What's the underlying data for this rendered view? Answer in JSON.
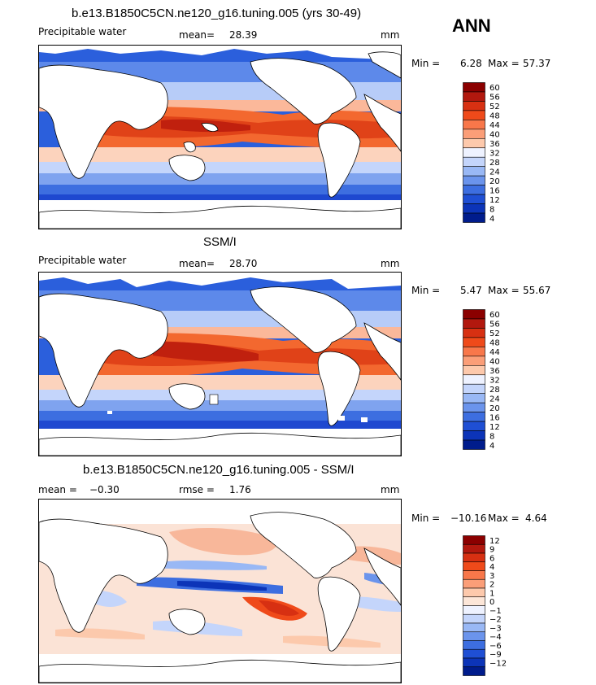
{
  "season": "ANN",
  "chart_data": [
    {
      "type": "heatmap",
      "title": "b.e13.B1850C5CN.ne120_g16.tuning.005 (yrs 30-49)",
      "variable": "Precipitable water",
      "units": "mm",
      "mean_label": "mean=",
      "mean": "28.39",
      "min_label": "Min =",
      "min": "6.28",
      "max_label": "Max =",
      "max": "57.37",
      "colorbar_levels": [
        "60",
        "56",
        "52",
        "48",
        "44",
        "40",
        "36",
        "32",
        "28",
        "24",
        "20",
        "16",
        "12",
        "8",
        "4"
      ],
      "colorbar_colors": [
        "#8b0000",
        "#b2180e",
        "#d73012",
        "#ef4a1a",
        "#f8774a",
        "#fb9e78",
        "#fdc9ac",
        "#eef2ff",
        "#c4d5fb",
        "#99b8f5",
        "#6b94ec",
        "#3d6ee0",
        "#1f4fd4",
        "#0c34b8",
        "#001c8c"
      ]
    },
    {
      "type": "heatmap",
      "title": "SSM/I",
      "variable": "Precipitable water",
      "units": "mm",
      "mean_label": "mean=",
      "mean": "28.70",
      "min_label": "Min =",
      "min": "5.47",
      "max_label": "Max =",
      "max": "55.67",
      "colorbar_levels": [
        "60",
        "56",
        "52",
        "48",
        "44",
        "40",
        "36",
        "32",
        "28",
        "24",
        "20",
        "16",
        "12",
        "8",
        "4"
      ],
      "colorbar_colors": [
        "#8b0000",
        "#b2180e",
        "#d73012",
        "#ef4a1a",
        "#f8774a",
        "#fb9e78",
        "#fdc9ac",
        "#eef2ff",
        "#c4d5fb",
        "#99b8f5",
        "#6b94ec",
        "#3d6ee0",
        "#1f4fd4",
        "#0c34b8",
        "#001c8c"
      ]
    },
    {
      "type": "heatmap",
      "title": "b.e13.B1850C5CN.ne120_g16.tuning.005 - SSM/I",
      "units": "mm",
      "mean_label": "mean =",
      "mean": "−0.30",
      "rmse_label": "rmse =",
      "rmse": "1.76",
      "min_label": "Min =",
      "min": "−10.16",
      "max_label": "Max =",
      "max": "4.64",
      "colorbar_levels": [
        "12",
        "9",
        "6",
        "4",
        "3",
        "2",
        "1",
        "0",
        "−1",
        "−2",
        "−3",
        "−4",
        "−6",
        "−9",
        "−12"
      ],
      "colorbar_colors": [
        "#8b0000",
        "#b2180e",
        "#d73012",
        "#ef4a1a",
        "#f8774a",
        "#fb9e78",
        "#fdc9ac",
        "#fce6d8",
        "#eef2ff",
        "#c4d5fb",
        "#99b8f5",
        "#6b94ec",
        "#3d6ee0",
        "#1f4fd4",
        "#0c34b8",
        "#001c8c"
      ]
    }
  ]
}
